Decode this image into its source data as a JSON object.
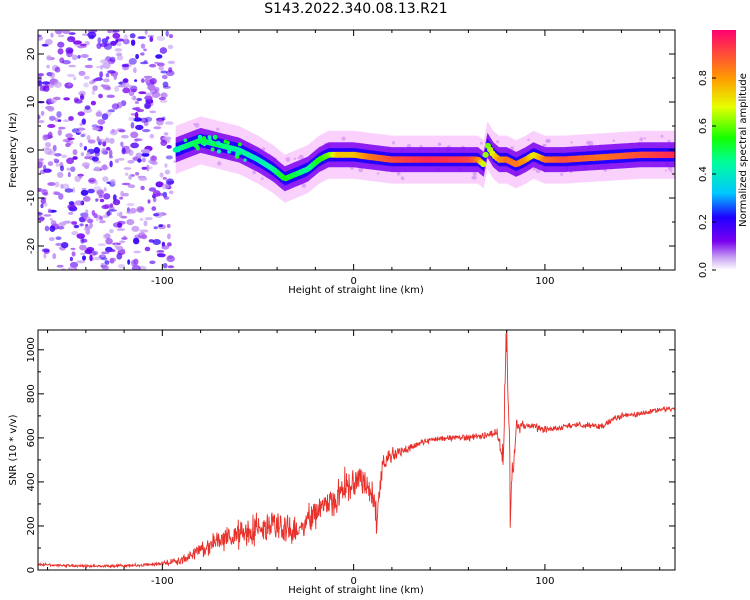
{
  "title": "S143.2022.340.08.13.R21",
  "colors": {
    "snr_line": "#e8302a",
    "ridge_fill": "#f07cf5",
    "axis": "#000000"
  },
  "chart_data": [
    {
      "type": "heatmap",
      "xlabel": "Height of straight line (km)",
      "ylabel": "Frequency (Hz)",
      "xlim": [
        -165,
        168
      ],
      "ylim": [
        -25,
        25
      ],
      "xticks": [
        -100,
        0,
        100
      ],
      "yticks": [
        -20,
        -10,
        0,
        10,
        20
      ],
      "colorbar": {
        "label": "Normalized spectral amplitude",
        "range": [
          0.0,
          1.0
        ],
        "ticks": [
          "0.0",
          "0.2",
          "0.4",
          "0.6",
          "0.8"
        ],
        "colormap": "gist_rainbow_r"
      },
      "ridge": {
        "x": [
          -93,
          -80,
          -70,
          -60,
          -50,
          -42,
          -36,
          -30,
          -24,
          -18,
          -13,
          -8,
          0,
          10,
          20,
          40,
          60,
          65,
          68,
          70,
          73,
          76,
          80,
          85,
          90,
          94,
          97,
          100,
          110,
          130,
          150,
          168
        ],
        "frequency": [
          0,
          2,
          1,
          0,
          -2,
          -4,
          -6,
          -5,
          -4,
          -2,
          -1,
          -1,
          -1,
          -1.5,
          -2,
          -2,
          -2,
          -2,
          -3,
          1,
          -1,
          -2,
          -2,
          -3,
          -2,
          -1,
          -1.5,
          -2,
          -2,
          -1.5,
          -1,
          -1
        ],
        "amplitude": [
          0.45,
          0.5,
          0.48,
          0.45,
          0.4,
          0.45,
          0.55,
          0.5,
          0.45,
          0.55,
          0.6,
          0.75,
          0.75,
          0.85,
          0.9,
          0.95,
          0.92,
          0.85,
          0.65,
          0.6,
          0.7,
          0.8,
          0.85,
          0.85,
          0.8,
          0.7,
          0.75,
          0.85,
          0.9,
          0.85,
          0.9,
          0.95
        ]
      },
      "noise_region": {
        "x_range": [
          -165,
          -95
        ],
        "amplitude": 0.15
      }
    },
    {
      "type": "line",
      "xlabel": "Height of straight line (km)",
      "ylabel": "SNR (10 * v/v)",
      "xlim": [
        -165,
        168
      ],
      "ylim": [
        0,
        1090
      ],
      "xticks": [
        -100,
        0,
        100
      ],
      "yticks": [
        0,
        200,
        400,
        600,
        800,
        1000
      ],
      "series": [
        {
          "x": [
            -165,
            -150,
            -130,
            -110,
            -100,
            -90,
            -80,
            -70,
            -60,
            -50,
            -40,
            -30,
            -20,
            -15,
            -10,
            -5,
            0,
            5,
            10,
            12,
            15,
            20,
            30,
            40,
            50,
            60,
            70,
            75,
            78,
            80,
            82,
            85,
            90,
            100,
            110,
            120,
            130,
            135,
            140,
            150,
            160,
            168
          ],
          "values": [
            25,
            20,
            18,
            22,
            30,
            45,
            90,
            140,
            160,
            180,
            200,
            180,
            260,
            300,
            300,
            380,
            400,
            420,
            340,
            230,
            480,
            520,
            560,
            590,
            600,
            600,
            610,
            630,
            500,
            1050,
            280,
            650,
            660,
            640,
            650,
            660,
            650,
            680,
            700,
            710,
            730,
            735
          ],
          "jitter": [
            8,
            8,
            8,
            8,
            10,
            25,
            50,
            70,
            80,
            90,
            90,
            80,
            90,
            90,
            90,
            100,
            90,
            90,
            80,
            80,
            60,
            40,
            25,
            18,
            18,
            18,
            20,
            40,
            100,
            200,
            150,
            40,
            25,
            20,
            18,
            18,
            18,
            18,
            15,
            15,
            15,
            12
          ]
        }
      ]
    }
  ]
}
